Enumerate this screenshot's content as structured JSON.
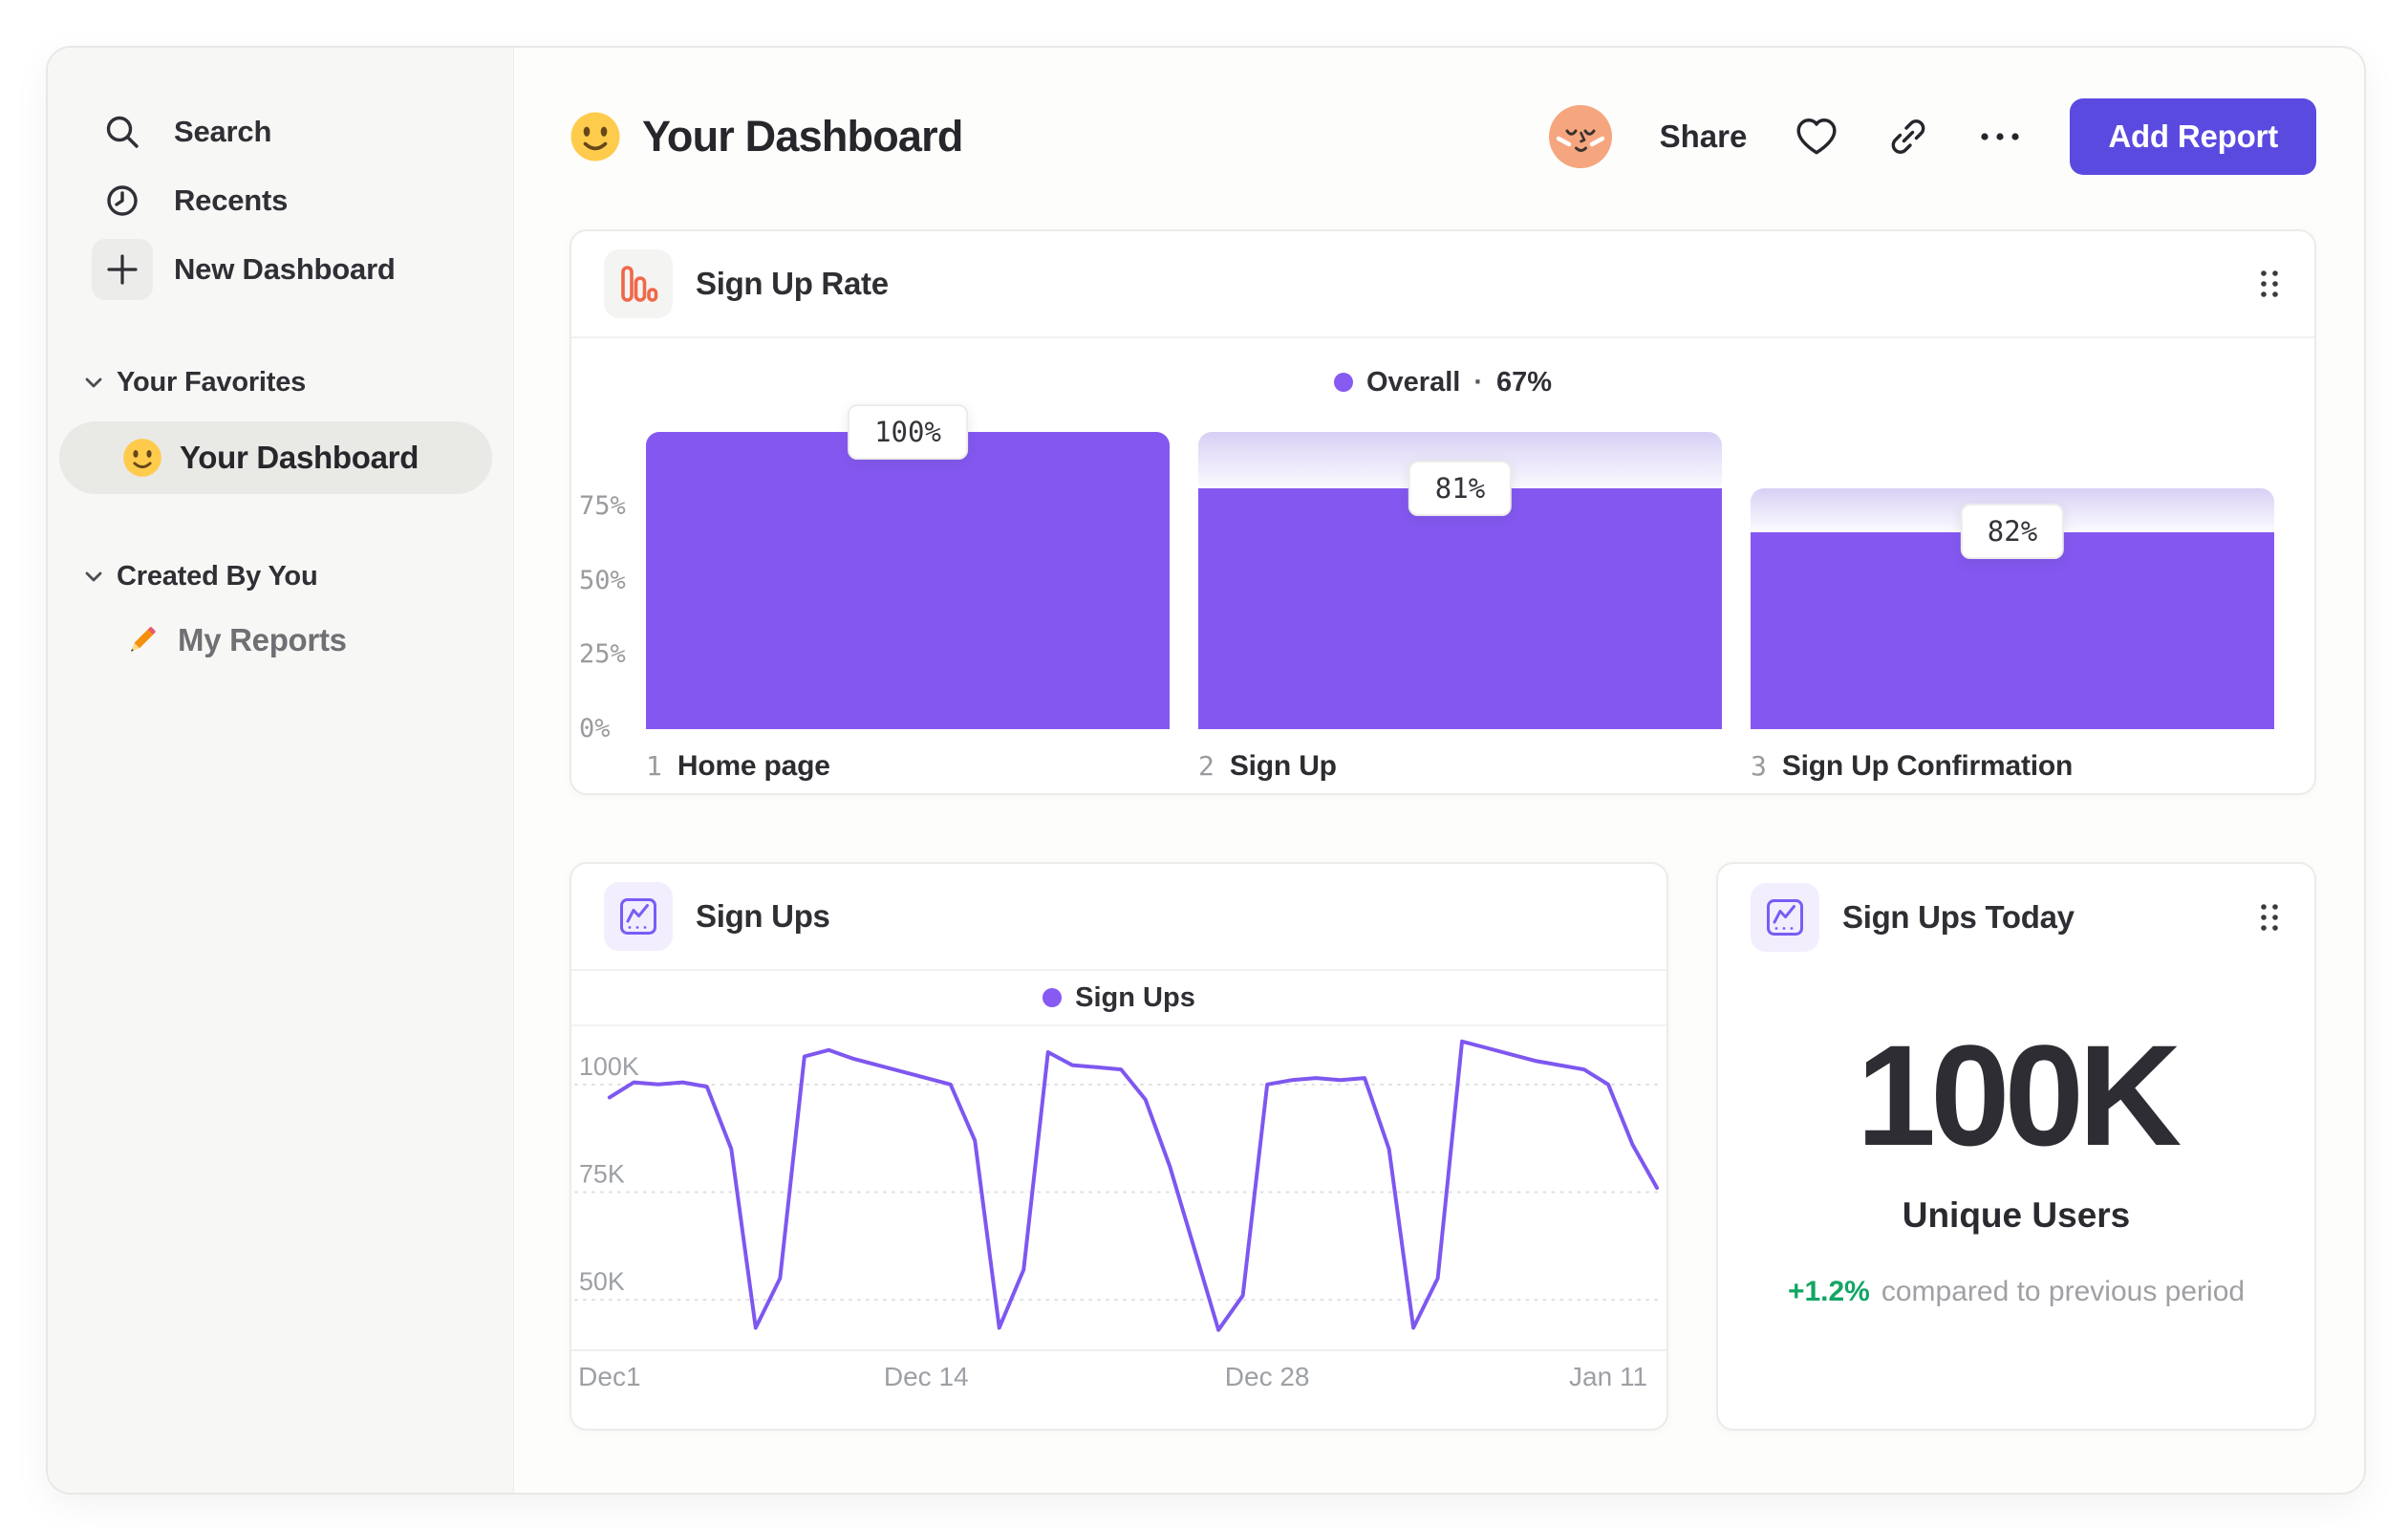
{
  "header": {
    "title": "Your Dashboard",
    "title_emoji": "slightly-smiling-face",
    "share": "Share",
    "add_report": "Add Report"
  },
  "sidebar": {
    "nav": [
      {
        "icon": "search",
        "label": "Search"
      },
      {
        "icon": "clock",
        "label": "Recents"
      },
      {
        "icon": "plus",
        "label": "New Dashboard"
      }
    ],
    "sections": [
      {
        "title": "Your Favorites",
        "items": [
          {
            "emoji": "slightly-smiling-face",
            "label": "Your Dashboard",
            "active": true
          }
        ]
      },
      {
        "title": "Created By You",
        "items": [
          {
            "emoji": "pencil",
            "label": "My Reports",
            "active": false
          }
        ]
      }
    ]
  },
  "cards": {
    "funnel": {
      "title": "Sign Up Rate",
      "legend": {
        "label": "Overall",
        "separator": "·",
        "value": "67%"
      }
    },
    "line": {
      "title": "Sign Ups",
      "legend": {
        "label": "Sign Ups"
      }
    },
    "today": {
      "title": "Sign Ups Today",
      "value": "100K",
      "metric": "Unique Users",
      "delta": "+1.2%",
      "note": "compared to previous period"
    }
  },
  "chart_data": [
    {
      "type": "bar",
      "subtype": "funnel",
      "title": "Sign Up Rate",
      "legend": "Overall",
      "overall_conversion": "67%",
      "ylim": [
        0,
        100
      ],
      "y_ticks": [
        {
          "label": "75%",
          "value": 75
        },
        {
          "label": "50%",
          "value": 50
        },
        {
          "label": "25%",
          "value": 25
        },
        {
          "label": "0%",
          "value": 0
        }
      ],
      "steps": [
        {
          "num": "1",
          "label": "Home page",
          "display": "100%",
          "conversion_from_previous": 100,
          "cumulative": 100
        },
        {
          "num": "2",
          "label": "Sign Up",
          "display": "81%",
          "conversion_from_previous": 81,
          "cumulative": 81
        },
        {
          "num": "3",
          "label": "Sign Up Confirmation",
          "display": "82%",
          "conversion_from_previous": 82,
          "cumulative": 66.4
        }
      ]
    },
    {
      "type": "line",
      "title": "Sign Ups",
      "legend": "Sign Ups",
      "unit": "thousands",
      "ylim": [
        38.5,
        113.5
      ],
      "grid": "dashed-horizontal",
      "y_ticks": [
        {
          "label": "100K",
          "value": 100
        },
        {
          "label": "75K",
          "value": 75
        },
        {
          "label": "50K",
          "value": 50
        }
      ],
      "x_ticks": [
        {
          "label": "Dec1",
          "index": 0
        },
        {
          "label": "Dec 14",
          "index": 13
        },
        {
          "label": "Dec 28",
          "index": 27
        },
        {
          "label": "Jan 11",
          "index": 41
        }
      ],
      "series": [
        {
          "name": "Sign Ups",
          "values": [
            97,
            100.5,
            100,
            100.5,
            99.5,
            85,
            43.5,
            55,
            106.5,
            108,
            106,
            104.5,
            103,
            101.5,
            100,
            87,
            43.5,
            57,
            107.5,
            104.5,
            104,
            103.5,
            96.5,
            81,
            62,
            43,
            51,
            100,
            101,
            101.5,
            101,
            101.5,
            85,
            43.5,
            55,
            110,
            108.5,
            107,
            105.5,
            104.5,
            103.5,
            100,
            86,
            76
          ]
        }
      ]
    }
  ],
  "colors": {
    "accent_purple": "#8458F0",
    "legend_dot": "#875AF2",
    "line_stroke": "#7E57F0",
    "gradient_top": "#D8D0F5",
    "button_purple": "#5A4AE0",
    "positive_green": "#12A564",
    "funnel_icon_orange": "#F0684A",
    "line_icon_purple": "#7B5CF5",
    "sidebar_bg": "#F7F7F5",
    "text_dark": "#2C2C31",
    "text_gray": "#9B9B9F"
  }
}
